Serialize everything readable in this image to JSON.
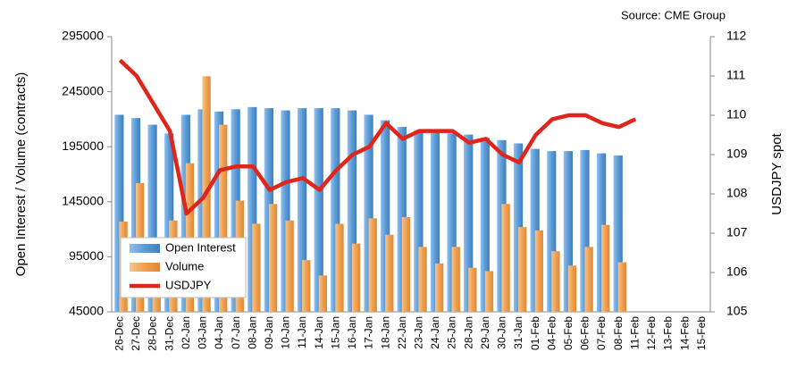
{
  "chart_data": {
    "type": "bar_line",
    "source": "Source: CME Group",
    "ylabel": "Open Interest / Volume (contracts)",
    "y2label": "USDJPY spot",
    "categories": [
      "26-Dec",
      "27-Dec",
      "28-Dec",
      "31-Dec",
      "02-Jan",
      "03-Jan",
      "04-Jan",
      "07-Jan",
      "08-Jan",
      "09-Jan",
      "10-Jan",
      "11-Jan",
      "14-Jan",
      "15-Jan",
      "16-Jan",
      "17-Jan",
      "18-Jan",
      "22-Jan",
      "23-Jan",
      "24-Jan",
      "25-Jan",
      "28-Jan",
      "29-Jan",
      "30-Jan",
      "31-Jan",
      "01-Feb",
      "04-Feb",
      "05-Feb",
      "06-Feb",
      "07-Feb",
      "08-Feb",
      "11-Feb",
      "12-Feb",
      "13-Feb",
      "14-Feb",
      "15-Feb"
    ],
    "series": [
      {
        "name": "Open Interest",
        "color": "#5b9bd5",
        "kind": "bar",
        "values": [
          224000,
          221000,
          215000,
          207000,
          224000,
          229000,
          227000,
          229000,
          231000,
          230000,
          228000,
          230000,
          230000,
          230000,
          228000,
          224000,
          219000,
          213000,
          210000,
          208000,
          207000,
          206000,
          203000,
          201000,
          198000,
          193000,
          191000,
          191000,
          192000,
          189000,
          187000,
          null,
          null,
          null,
          null,
          null
        ]
      },
      {
        "name": "Volume",
        "color": "#f0a050",
        "kind": "bar",
        "values": [
          127000,
          162000,
          109000,
          128000,
          180000,
          259000,
          215000,
          146000,
          125000,
          143000,
          128000,
          92000,
          78000,
          125000,
          107000,
          130000,
          115000,
          131000,
          104000,
          89000,
          104000,
          85000,
          82000,
          143000,
          122000,
          119000,
          100000,
          87000,
          104000,
          124000,
          90000,
          null,
          null,
          null,
          null,
          null
        ]
      },
      {
        "name": "USDJPY",
        "color": "#e0251b",
        "kind": "line",
        "axis": "y2",
        "values": [
          111.4,
          111.0,
          110.3,
          109.6,
          107.5,
          107.9,
          108.6,
          108.7,
          108.7,
          108.1,
          108.3,
          108.4,
          108.1,
          108.6,
          109.0,
          109.2,
          109.8,
          109.4,
          109.6,
          109.6,
          109.6,
          109.3,
          109.4,
          109.0,
          108.8,
          109.5,
          109.9,
          110.0,
          110.0,
          109.8,
          109.7,
          109.9,
          null,
          null,
          null,
          null
        ]
      }
    ],
    "ylim": [
      45000,
      295000
    ],
    "yticks": [
      45000,
      95000,
      145000,
      195000,
      245000,
      295000
    ],
    "y2lim": [
      105,
      112
    ],
    "y2ticks": [
      105,
      106,
      107,
      108,
      109,
      110,
      111,
      112
    ],
    "legend": "lower-left"
  }
}
